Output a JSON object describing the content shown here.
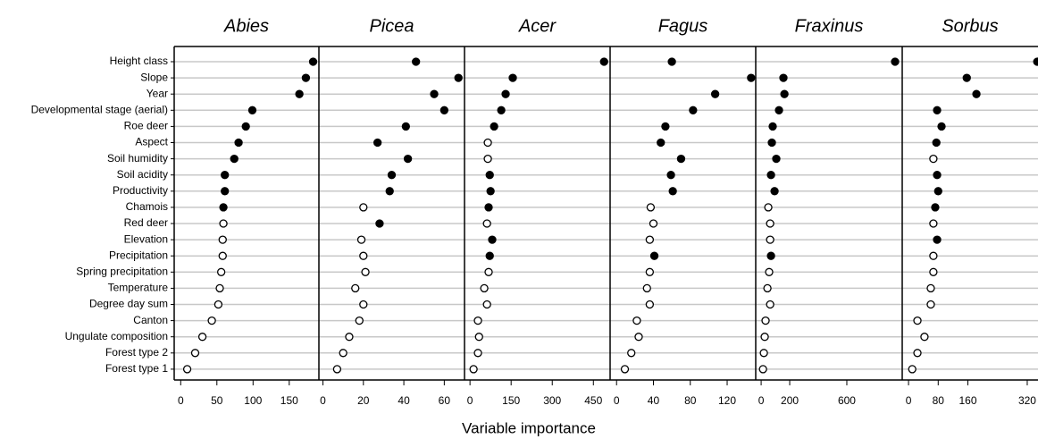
{
  "chart_data": {
    "type": "dot",
    "xlabel": "Variable importance",
    "marker_colors": {
      "filled": "#000000",
      "open": "#ffffff"
    },
    "categories": [
      "Height class",
      "Slope",
      "Year",
      "Developmental stage (aerial)",
      "Roe deer",
      "Aspect",
      "Soil humidity",
      "Soil acidity",
      "Productivity",
      "Chamois",
      "Red deer",
      "Elevation",
      "Precipitation",
      "Spring precipitation",
      "Temperature",
      "Degree day sum",
      "Canton",
      "Ungulate composition",
      "Forest type 2",
      "Forest type 1"
    ],
    "panels": [
      {
        "title": "Abies",
        "xlim": [
          -9,
          191
        ],
        "xticks": [
          0,
          50,
          100,
          150
        ],
        "values": [
          183,
          173,
          164,
          99,
          90,
          80,
          74,
          61,
          61,
          59,
          59,
          58,
          58,
          56,
          54,
          52,
          43,
          30,
          20,
          9
        ],
        "filled": [
          true,
          true,
          true,
          true,
          true,
          true,
          true,
          true,
          true,
          true,
          false,
          false,
          false,
          false,
          false,
          false,
          false,
          false,
          false,
          false
        ]
      },
      {
        "title": "Picea",
        "xlim": [
          -2,
          70
        ],
        "xticks": [
          0,
          20,
          40,
          60
        ],
        "values": [
          46,
          67,
          55,
          60,
          41,
          27,
          42,
          34,
          33,
          20,
          28,
          19,
          20,
          21,
          16,
          20,
          18,
          13,
          10,
          7
        ],
        "filled": [
          true,
          true,
          true,
          true,
          true,
          true,
          true,
          true,
          true,
          false,
          true,
          false,
          false,
          false,
          false,
          false,
          false,
          false,
          false,
          false
        ]
      },
      {
        "title": "Acer",
        "xlim": [
          -20,
          511
        ],
        "xticks": [
          0,
          150,
          300,
          450
        ],
        "values": [
          489,
          156,
          130,
          114,
          88,
          65,
          65,
          72,
          75,
          68,
          62,
          81,
          72,
          68,
          52,
          62,
          29,
          33,
          29,
          13
        ],
        "filled": [
          true,
          true,
          true,
          true,
          true,
          false,
          false,
          true,
          true,
          true,
          false,
          true,
          true,
          false,
          false,
          false,
          false,
          false,
          false,
          false
        ]
      },
      {
        "title": "Fagus",
        "xlim": [
          -7,
          151
        ],
        "xticks": [
          0,
          40,
          80,
          120
        ],
        "values": [
          60,
          146,
          107,
          83,
          53,
          48,
          70,
          59,
          61,
          37,
          40,
          36,
          41,
          36,
          33,
          36,
          22,
          24,
          16,
          9
        ],
        "filled": [
          true,
          true,
          true,
          true,
          true,
          true,
          true,
          true,
          true,
          false,
          false,
          false,
          true,
          false,
          false,
          false,
          false,
          false,
          false,
          false
        ]
      },
      {
        "title": "Fraxinus",
        "xlim": [
          -38,
          988
        ],
        "xticks": [
          0,
          200,
          600
        ],
        "values": [
          938,
          156,
          163,
          125,
          81,
          75,
          106,
          69,
          94,
          50,
          63,
          63,
          69,
          56,
          44,
          63,
          31,
          25,
          19,
          13
        ],
        "filled": [
          true,
          true,
          true,
          true,
          true,
          true,
          true,
          true,
          true,
          false,
          false,
          false,
          true,
          false,
          false,
          false,
          false,
          false,
          false,
          false
        ]
      },
      {
        "title": "Sorbus",
        "xlim": [
          -17,
          349
        ],
        "xticks": [
          0,
          80,
          160,
          320
        ],
        "values": [
          347,
          157,
          183,
          77,
          89,
          75,
          67,
          77,
          80,
          72,
          67,
          77,
          67,
          67,
          60,
          60,
          24,
          43,
          24,
          10
        ],
        "filled": [
          true,
          true,
          true,
          true,
          true,
          true,
          false,
          true,
          true,
          true,
          false,
          true,
          false,
          false,
          false,
          false,
          false,
          false,
          false,
          false
        ]
      }
    ]
  }
}
